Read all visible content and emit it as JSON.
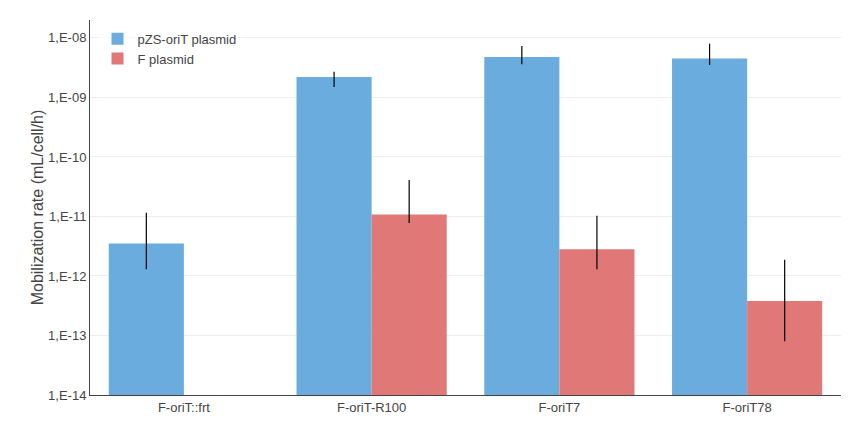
{
  "chart_data": {
    "type": "bar",
    "categories": [
      "F-oriT::frt",
      "F-oriT-R100",
      "F-oriT7",
      "F-oriT78"
    ],
    "series": [
      {
        "name": "pZS-oriT plasmid",
        "color": "#6aacde",
        "values": [
          3.5e-12,
          2.2e-09,
          4.8e-09,
          4.5e-09
        ],
        "error_up": [
          8e-12,
          5e-10,
          2.5e-09,
          3.5e-09
        ],
        "error_low": [
          2.2e-12,
          7e-10,
          1.2e-09,
          1e-09
        ]
      },
      {
        "name": "F plasmid",
        "color": "#e07878",
        "values": [
          null,
          1.08e-11,
          2.8e-12,
          3.8e-13
        ],
        "error_up": [
          null,
          3e-11,
          7.5e-12,
          1.5e-12
        ],
        "error_low": [
          null,
          3e-12,
          1.5e-12,
          3e-13
        ]
      }
    ],
    "ylabel": "Mobilization rate (mL/cell/h)",
    "ylim": [
      1e-14,
      2e-08
    ],
    "yticks": [
      {
        "value": 1e-14,
        "label": "1,E-14"
      },
      {
        "value": 1e-13,
        "label": "1,E-13"
      },
      {
        "value": 1e-12,
        "label": "1,E-12"
      },
      {
        "value": 1e-11,
        "label": "1,E-11"
      },
      {
        "value": 1e-10,
        "label": "1,E-10"
      },
      {
        "value": 1e-09,
        "label": "1,E-09"
      },
      {
        "value": 1e-08,
        "label": "1,E-08"
      }
    ],
    "log": "y",
    "grid": true,
    "legend": "upper left"
  }
}
